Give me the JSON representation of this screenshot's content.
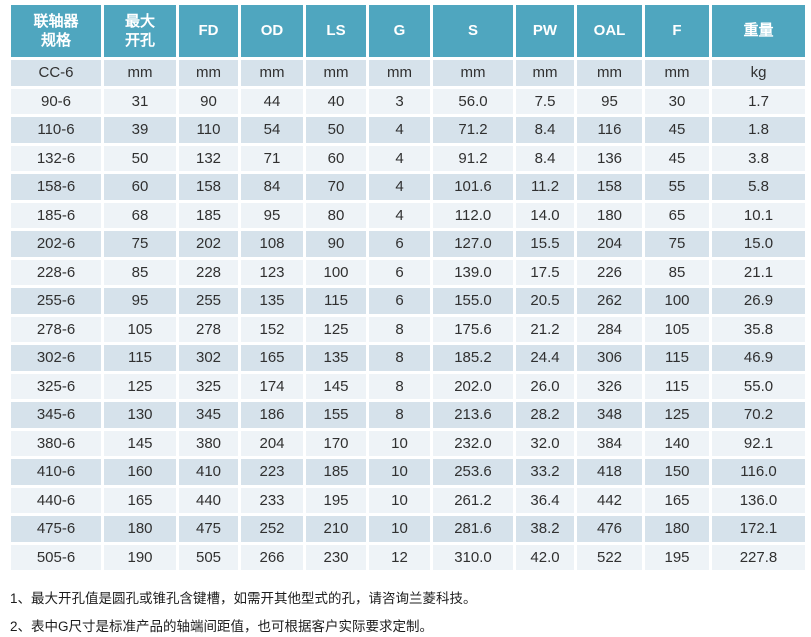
{
  "colors": {
    "header_bg": "#4FA6BF",
    "row_dark": "#d6e2eb",
    "row_light": "#eef3f7",
    "header_text": "#ffffff",
    "cell_text": "#303030"
  },
  "table": {
    "headers": [
      "联轴器\n规格",
      "最大\n开孔",
      "FD",
      "OD",
      "LS",
      "G",
      "S",
      "PW",
      "OAL",
      "F",
      "重量"
    ],
    "units_row": [
      "CC-6",
      "mm",
      "mm",
      "mm",
      "mm",
      "mm",
      "mm",
      "mm",
      "mm",
      "mm",
      "kg"
    ],
    "rows": [
      [
        "90-6",
        "31",
        "90",
        "44",
        "40",
        "3",
        "56.0",
        "7.5",
        "95",
        "30",
        "1.7"
      ],
      [
        "110-6",
        "39",
        "110",
        "54",
        "50",
        "4",
        "71.2",
        "8.4",
        "116",
        "45",
        "1.8"
      ],
      [
        "132-6",
        "50",
        "132",
        "71",
        "60",
        "4",
        "91.2",
        "8.4",
        "136",
        "45",
        "3.8"
      ],
      [
        "158-6",
        "60",
        "158",
        "84",
        "70",
        "4",
        "101.6",
        "11.2",
        "158",
        "55",
        "5.8"
      ],
      [
        "185-6",
        "68",
        "185",
        "95",
        "80",
        "4",
        "112.0",
        "14.0",
        "180",
        "65",
        "10.1"
      ],
      [
        "202-6",
        "75",
        "202",
        "108",
        "90",
        "6",
        "127.0",
        "15.5",
        "204",
        "75",
        "15.0"
      ],
      [
        "228-6",
        "85",
        "228",
        "123",
        "100",
        "6",
        "139.0",
        "17.5",
        "226",
        "85",
        "21.1"
      ],
      [
        "255-6",
        "95",
        "255",
        "135",
        "115",
        "6",
        "155.0",
        "20.5",
        "262",
        "100",
        "26.9"
      ],
      [
        "278-6",
        "105",
        "278",
        "152",
        "125",
        "8",
        "175.6",
        "21.2",
        "284",
        "105",
        "35.8"
      ],
      [
        "302-6",
        "115",
        "302",
        "165",
        "135",
        "8",
        "185.2",
        "24.4",
        "306",
        "115",
        "46.9"
      ],
      [
        "325-6",
        "125",
        "325",
        "174",
        "145",
        "8",
        "202.0",
        "26.0",
        "326",
        "115",
        "55.0"
      ],
      [
        "345-6",
        "130",
        "345",
        "186",
        "155",
        "8",
        "213.6",
        "28.2",
        "348",
        "125",
        "70.2"
      ],
      [
        "380-6",
        "145",
        "380",
        "204",
        "170",
        "10",
        "232.0",
        "32.0",
        "384",
        "140",
        "92.1"
      ],
      [
        "410-6",
        "160",
        "410",
        "223",
        "185",
        "10",
        "253.6",
        "33.2",
        "418",
        "150",
        "116.0"
      ],
      [
        "440-6",
        "165",
        "440",
        "233",
        "195",
        "10",
        "261.2",
        "36.4",
        "442",
        "165",
        "136.0"
      ],
      [
        "475-6",
        "180",
        "475",
        "252",
        "210",
        "10",
        "281.6",
        "38.2",
        "476",
        "180",
        "172.1"
      ],
      [
        "505-6",
        "190",
        "505",
        "266",
        "230",
        "12",
        "310.0",
        "42.0",
        "522",
        "195",
        "227.8"
      ]
    ]
  },
  "notes": [
    "1、最大开孔值是圆孔或锥孔含键槽，如需开其他型式的孔，请咨询兰菱科技。",
    "2、表中G尺寸是标准产品的轴端间距值，也可根据客户实际要求定制。"
  ]
}
